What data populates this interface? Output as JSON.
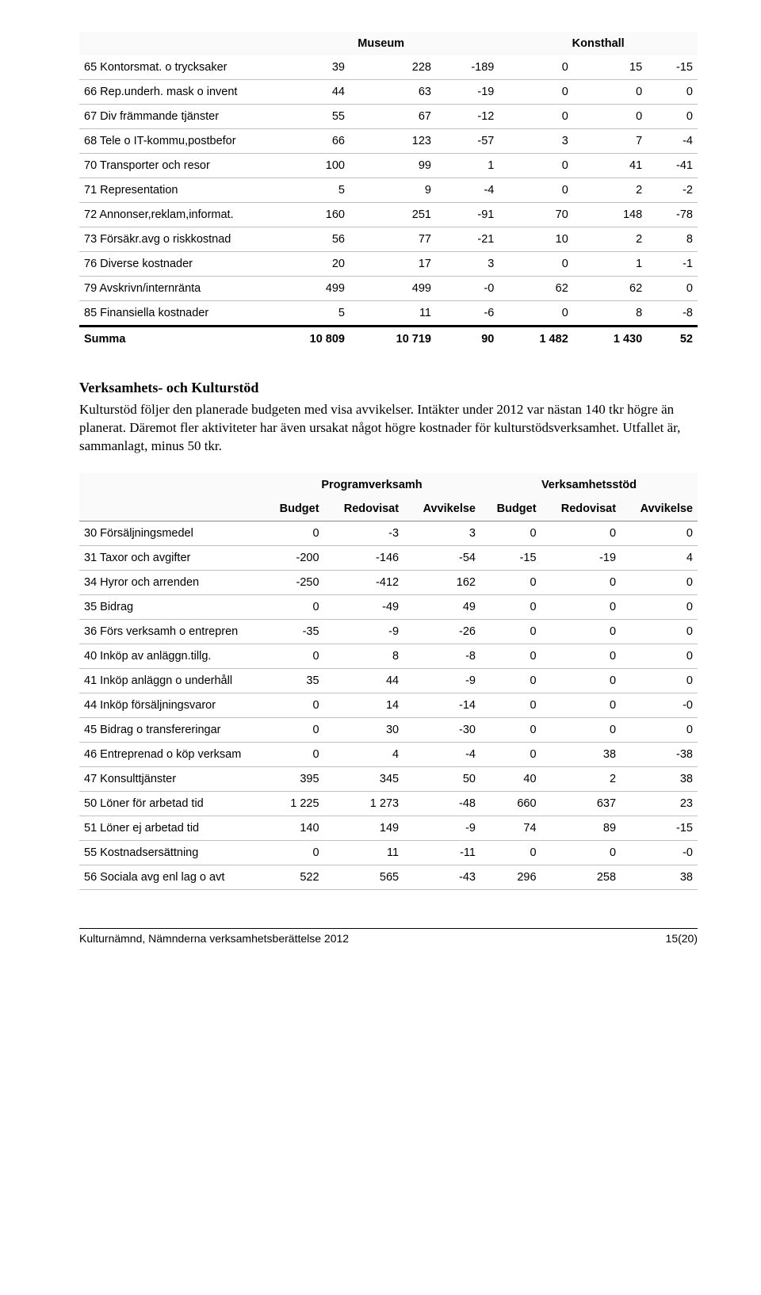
{
  "table1": {
    "group_headers": [
      "",
      "Museum",
      "Konsthall"
    ],
    "rows": [
      {
        "label": "65 Kontorsmat. o trycksaker",
        "v": [
          39,
          228,
          -189,
          0,
          15,
          -15
        ]
      },
      {
        "label": "66 Rep.underh. mask o invent",
        "v": [
          44,
          63,
          -19,
          0,
          0,
          0
        ]
      },
      {
        "label": "67 Div främmande tjänster",
        "v": [
          55,
          67,
          -12,
          0,
          0,
          0
        ]
      },
      {
        "label": "68 Tele o IT-kommu,postbefor",
        "v": [
          66,
          123,
          -57,
          3,
          7,
          -4
        ]
      },
      {
        "label": "70 Transporter och resor",
        "v": [
          100,
          99,
          1,
          0,
          41,
          -41
        ]
      },
      {
        "label": "71 Representation",
        "v": [
          5,
          9,
          -4,
          0,
          2,
          -2
        ]
      },
      {
        "label": "72 Annonser,reklam,informat.",
        "v": [
          160,
          251,
          -91,
          70,
          148,
          -78
        ]
      },
      {
        "label": "73 Försäkr.avg o riskkostnad",
        "v": [
          56,
          77,
          -21,
          10,
          2,
          8
        ]
      },
      {
        "label": "76 Diverse kostnader",
        "v": [
          20,
          17,
          3,
          0,
          1,
          -1
        ]
      },
      {
        "label": "79 Avskrivn/internränta",
        "v": [
          499,
          499,
          "-0",
          62,
          62,
          0
        ]
      },
      {
        "label": "85 Finansiella kostnader",
        "v": [
          5,
          11,
          -6,
          0,
          8,
          -8
        ]
      }
    ],
    "summa": {
      "label": "Summa",
      "v": [
        "10 809",
        "10 719",
        90,
        "1 482",
        "1 430",
        52
      ]
    }
  },
  "section": {
    "title": "Verksamhets- och Kulturstöd",
    "text": "Kulturstöd följer den planerade budgeten med visa avvikelser. Intäkter under 2012 var nästan 140 tkr högre än planerat. Däremot fler aktiviteter har även ursakat något högre kostnader för kulturstödsverksamhet. Utfallet är, sammanlagt, minus 50 tkr."
  },
  "table2": {
    "group_headers": [
      "",
      "Programverksamh",
      "Verksamhetsstöd"
    ],
    "sub_headers": [
      "",
      "Budget",
      "Redovisat",
      "Avvikelse",
      "Budget",
      "Redovisat",
      "Avvikelse"
    ],
    "rows": [
      {
        "label": "30 Försäljningsmedel",
        "v": [
          0,
          -3,
          3,
          0,
          0,
          0
        ]
      },
      {
        "label": "31 Taxor och avgifter",
        "v": [
          -200,
          -146,
          -54,
          -15,
          -19,
          4
        ]
      },
      {
        "label": "34 Hyror och arrenden",
        "v": [
          -250,
          -412,
          162,
          0,
          0,
          0
        ]
      },
      {
        "label": "35 Bidrag",
        "v": [
          0,
          -49,
          49,
          0,
          0,
          0
        ]
      },
      {
        "label": "36 Förs verksamh o entrepren",
        "v": [
          -35,
          -9,
          -26,
          0,
          0,
          0
        ]
      },
      {
        "label": "40 Inköp av anläggn.tillg.",
        "v": [
          0,
          8,
          -8,
          0,
          0,
          0
        ]
      },
      {
        "label": "41 Inköp anläggn o underhåll",
        "v": [
          35,
          44,
          -9,
          0,
          0,
          0
        ]
      },
      {
        "label": "44 Inköp försäljningsvaror",
        "v": [
          0,
          14,
          -14,
          0,
          0,
          "-0"
        ]
      },
      {
        "label": "45 Bidrag o transfereringar",
        "v": [
          0,
          30,
          -30,
          0,
          0,
          0
        ]
      },
      {
        "label": "46 Entreprenad o köp verksam",
        "v": [
          0,
          4,
          -4,
          0,
          38,
          -38
        ]
      },
      {
        "label": "47 Konsulttjänster",
        "v": [
          395,
          345,
          50,
          40,
          2,
          38
        ]
      },
      {
        "label": "50 Löner för arbetad tid",
        "v": [
          "1 225",
          "1 273",
          -48,
          660,
          637,
          23
        ]
      },
      {
        "label": "51 Löner ej arbetad tid",
        "v": [
          140,
          149,
          -9,
          74,
          89,
          -15
        ]
      },
      {
        "label": "55 Kostnadsersättning",
        "v": [
          0,
          11,
          -11,
          0,
          0,
          "-0"
        ]
      },
      {
        "label": "56 Sociala avg enl lag o avt",
        "v": [
          522,
          565,
          -43,
          296,
          258,
          38
        ]
      }
    ]
  },
  "footer": {
    "left": "Kulturnämnd, Nämnderna verksamhetsberättelse 2012",
    "right": "15(20)"
  }
}
